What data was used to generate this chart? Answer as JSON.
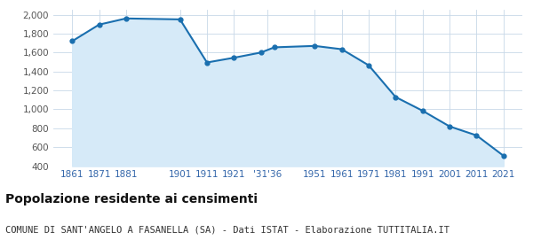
{
  "years": [
    1861,
    1871,
    1881,
    1901,
    1911,
    1921,
    1931,
    1936,
    1951,
    1961,
    1971,
    1981,
    1991,
    2001,
    2011,
    2021
  ],
  "population": [
    1720,
    1895,
    1960,
    1950,
    1495,
    1545,
    1600,
    1655,
    1670,
    1635,
    1465,
    1130,
    985,
    820,
    725,
    510
  ],
  "x_tick_positions": [
    1861,
    1871,
    1881,
    1901,
    1911,
    1921,
    1933.5,
    1951,
    1961,
    1971,
    1981,
    1991,
    2001,
    2011,
    2021
  ],
  "x_tick_labels": [
    "1861",
    "1871",
    "1881",
    "1901",
    "1911",
    "1921",
    "'31'36",
    "1951",
    "1961",
    "1971",
    "1981",
    "1991",
    "2001",
    "2011",
    "2021"
  ],
  "line_color": "#1a6faf",
  "fill_color": "#d6eaf8",
  "marker_color": "#1a6faf",
  "background_color": "#ffffff",
  "grid_color": "#c8d8e8",
  "ylim": [
    400,
    2050
  ],
  "yticks": [
    400,
    600,
    800,
    1000,
    1200,
    1400,
    1600,
    1800,
    2000
  ],
  "xlim": [
    1854,
    2028
  ],
  "title": "Popolazione residente ai censimenti",
  "subtitle": "COMUNE DI SANT'ANGELO A FASANELLA (SA) - Dati ISTAT - Elaborazione TUTTITALIA.IT",
  "title_fontsize": 10,
  "subtitle_fontsize": 7.5
}
